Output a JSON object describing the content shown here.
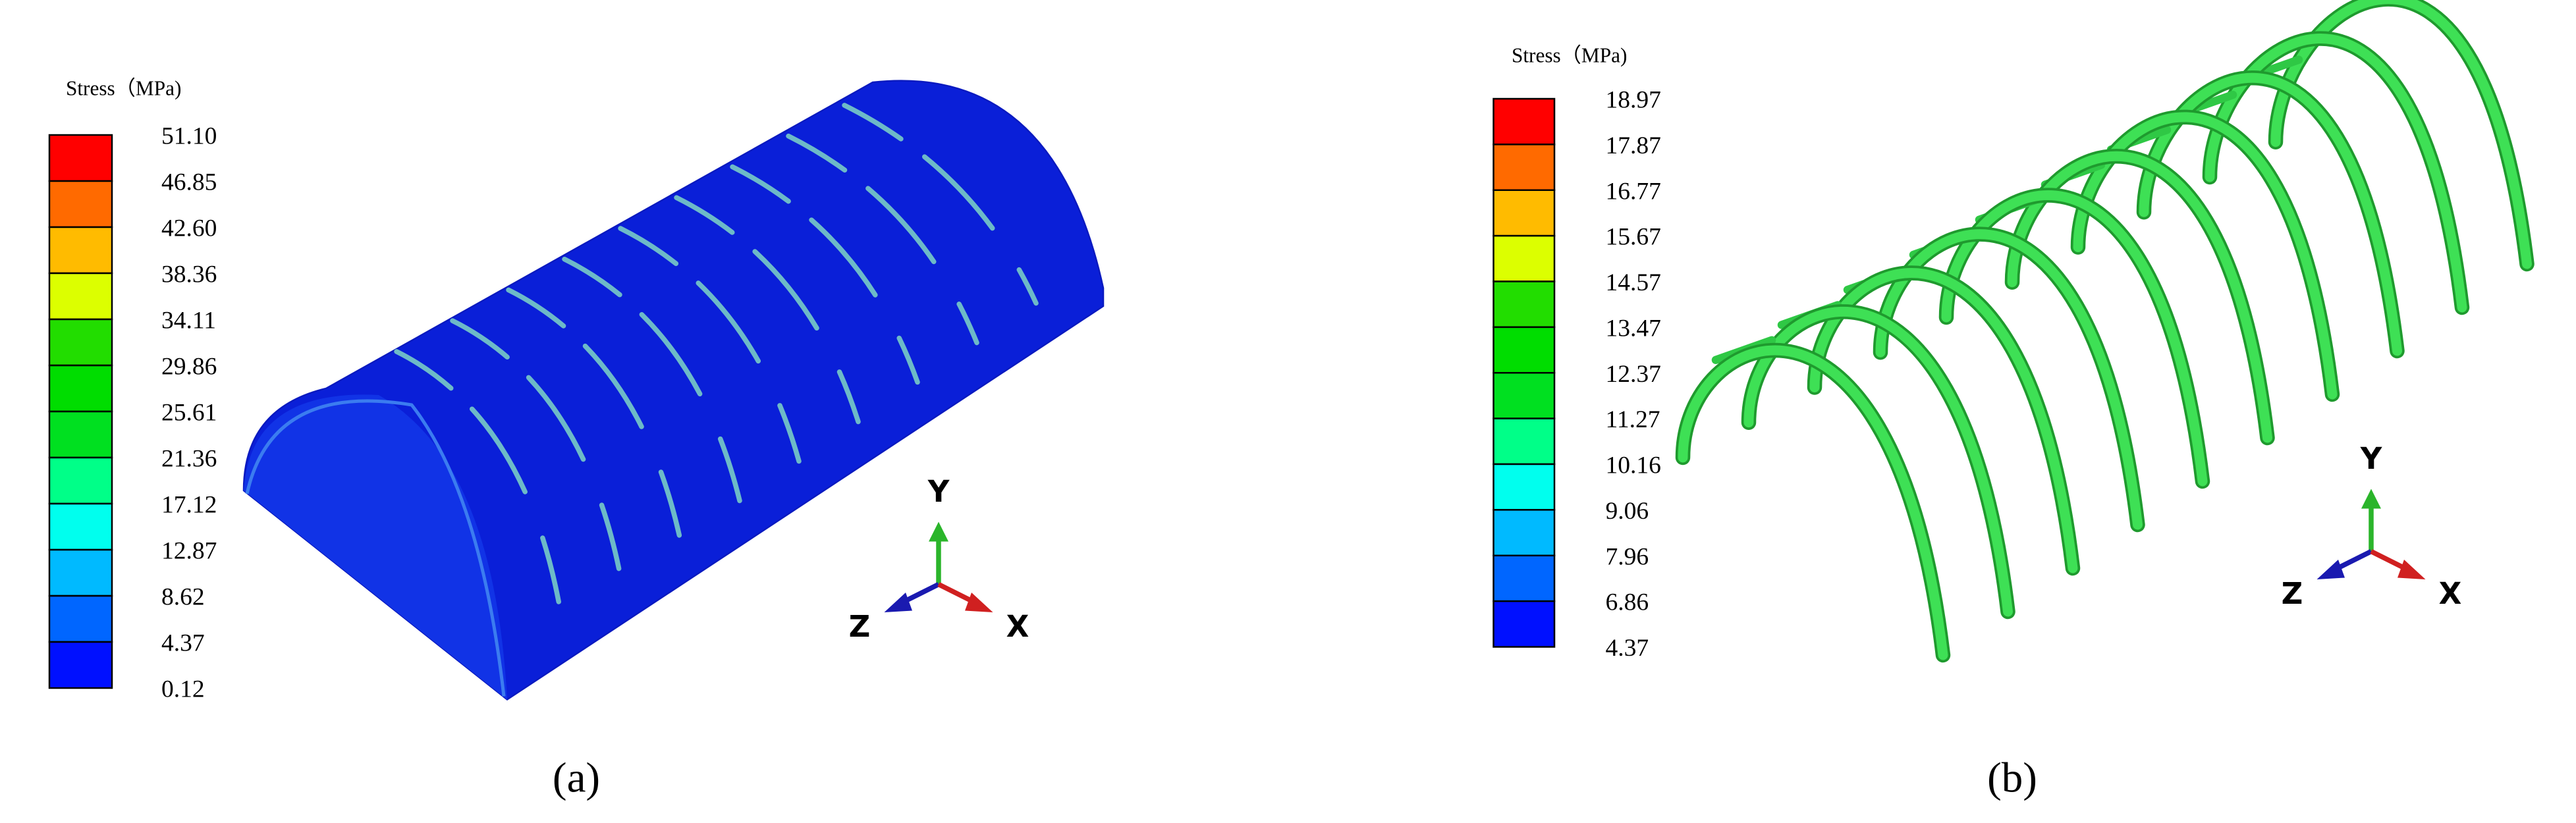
{
  "panels": [
    {
      "legend": {
        "title": "Stress（MPa)",
        "labels": [
          "51.10",
          "46.85",
          "42.60",
          "38.36",
          "34.11",
          "29.86",
          "25.61",
          "21.36",
          "17.12",
          "12.87",
          "8.62",
          "4.37",
          "0.12"
        ]
      },
      "axes": {
        "y": "Y",
        "z": "Z",
        "x": "X"
      },
      "caption": "(a)"
    },
    {
      "legend": {
        "title": "Stress（MPa)",
        "labels": [
          "18.97",
          "17.87",
          "16.77",
          "15.67",
          "14.57",
          "13.47",
          "12.37",
          "11.27",
          "10.16",
          "9.06",
          "7.96",
          "6.86",
          "4.37"
        ]
      },
      "axes": {
        "y": "Y",
        "z": "Z",
        "x": "X"
      },
      "caption": "(b)"
    }
  ]
}
